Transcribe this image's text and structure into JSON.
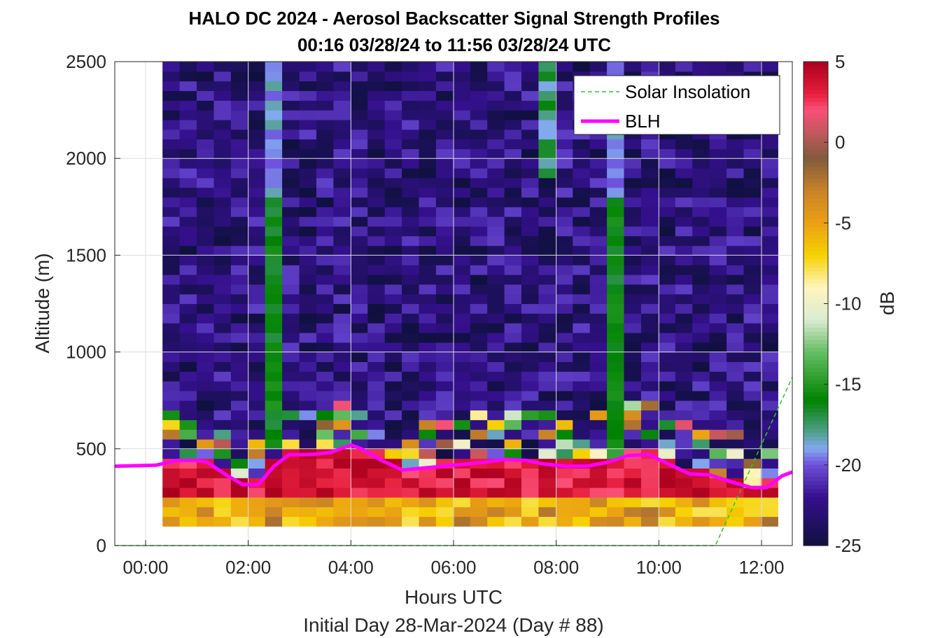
{
  "chart_data": {
    "type": "heatmap",
    "title_line1": "HALO DC 2024 - Aerosol Backscatter Signal Strength Profiles",
    "title_line2": "00:16 03/28/24 to 11:56 03/28/24  UTC",
    "xlabel": "Hours UTC",
    "xlabel2": "Initial Day 28-Mar-2024 (Day # 88)",
    "ylabel": "Altitude (m)",
    "colorbar_label": "dB",
    "xlim": [
      -0.6,
      12.6
    ],
    "ylim": [
      0,
      2500
    ],
    "clim": [
      -25,
      5
    ],
    "x_ticks": [
      0,
      2,
      4,
      6,
      8,
      10,
      12
    ],
    "x_tick_labels": [
      "00:00",
      "02:00",
      "04:00",
      "06:00",
      "08:00",
      "10:00",
      "12:00"
    ],
    "y_ticks": [
      0,
      500,
      1000,
      1500,
      2000,
      2500
    ],
    "y_tick_labels": [
      "0",
      "500",
      "1000",
      "1500",
      "2000",
      "2500"
    ],
    "cbar_ticks": [
      5,
      0,
      -5,
      -10,
      -15,
      -20,
      -25
    ],
    "cbar_tick_labels": [
      "5",
      "0",
      "-5",
      "-10",
      "-15",
      "-20",
      "-25"
    ],
    "grid": true,
    "legend_position": "top-right",
    "legend": [
      {
        "label": "Solar Insolation",
        "color": "#22cc22",
        "style": "dashed"
      },
      {
        "label": "BLH",
        "color": "#ff00ff",
        "style": "solid"
      }
    ],
    "heatmap": {
      "x_start": 0.33,
      "x_step": 0.333,
      "y_start": 100,
      "y_step": 50,
      "top_altitudes_per_column": [
        2500,
        2500,
        2500,
        2500,
        2500,
        2500,
        2500,
        2500,
        2500,
        2500,
        2500,
        2500,
        2500,
        2500,
        2500,
        2500,
        2500,
        2500,
        2500,
        2500,
        2500,
        2500,
        2500,
        2500,
        2500,
        2500,
        2500,
        2500,
        2500,
        2500,
        2500,
        2500,
        2500,
        2500,
        2500,
        2500
      ],
      "profile_dB_by_column_lowest_layers": {
        "note_bins": "values listed from lowest altitude bin upward"
      }
    },
    "series": [
      {
        "name": "BLH",
        "x": [
          -0.6,
          0.2,
          0.6,
          1.0,
          1.2,
          1.6,
          1.9,
          2.2,
          2.5,
          2.8,
          3.2,
          3.6,
          4.0,
          4.2,
          4.6,
          5.0,
          5.4,
          5.8,
          6.2,
          6.6,
          7.0,
          7.4,
          7.8,
          8.2,
          8.6,
          9.0,
          9.4,
          9.8,
          10.2,
          10.6,
          11.0,
          11.4,
          11.8,
          12.1,
          12.4,
          12.6
        ],
        "y": [
          410,
          415,
          440,
          440,
          430,
          360,
          315,
          315,
          410,
          470,
          470,
          480,
          520,
          500,
          440,
          390,
          400,
          410,
          420,
          430,
          445,
          440,
          420,
          410,
          410,
          430,
          465,
          470,
          420,
          370,
          365,
          330,
          300,
          300,
          360,
          380
        ],
        "color": "#ff00ff"
      },
      {
        "name": "Solar Insolation",
        "x": [
          -0.6,
          11.1,
          12.6
        ],
        "y": [
          0,
          0,
          870
        ],
        "color": "#22cc22"
      }
    ]
  }
}
